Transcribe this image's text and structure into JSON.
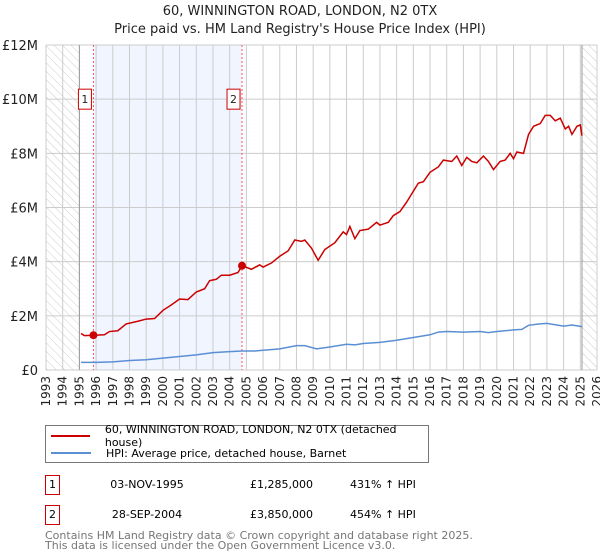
{
  "header": {
    "title": "60, WINNINGTON ROAD, LONDON, N2 0TX",
    "subtitle": "Price paid vs. HM Land Registry's House Price Index (HPI)"
  },
  "chart_data": {
    "type": "line",
    "title": "60, WINNINGTON ROAD, LONDON, N2 0TX",
    "subtitle": "Price paid vs. HM Land Registry's House Price Index (HPI)",
    "xlim": [
      1993,
      2026
    ],
    "ylim": [
      0,
      12
    ],
    "x_ticks": [
      "1993",
      "1994",
      "1995",
      "1996",
      "1997",
      "1998",
      "1999",
      "2000",
      "2001",
      "2002",
      "2003",
      "2004",
      "2005",
      "2006",
      "2007",
      "2008",
      "2009",
      "2010",
      "2011",
      "2012",
      "2013",
      "2014",
      "2015",
      "2016",
      "2017",
      "2018",
      "2019",
      "2020",
      "2021",
      "2022",
      "2023",
      "2024",
      "2025",
      "2026"
    ],
    "y_ticks": [
      {
        "v": 0,
        "label": "£0"
      },
      {
        "v": 2,
        "label": "£2M"
      },
      {
        "v": 4,
        "label": "£4M"
      },
      {
        "v": 6,
        "label": "£6M"
      },
      {
        "v": 8,
        "label": "£8M"
      },
      {
        "v": 10,
        "label": "£10M"
      },
      {
        "v": 12,
        "label": "£12M"
      }
    ],
    "grid": true,
    "data_range": [
      1995,
      2025.1
    ],
    "shaded_between_sales": [
      1995.84,
      2004.74
    ],
    "series": [
      {
        "name": "60, WINNINGTON ROAD, LONDON, N2 0TX (detached house)",
        "color": "#cc0000",
        "points": [
          [
            1995.1,
            1.35
          ],
          [
            1995.3,
            1.27
          ],
          [
            1995.84,
            1.285
          ],
          [
            1996.5,
            1.3
          ],
          [
            1996.8,
            1.42
          ],
          [
            1997.3,
            1.45
          ],
          [
            1997.8,
            1.7
          ],
          [
            1998.5,
            1.8
          ],
          [
            1999,
            1.88
          ],
          [
            1999.5,
            1.9
          ],
          [
            2000,
            2.2
          ],
          [
            2000.5,
            2.4
          ],
          [
            2001,
            2.62
          ],
          [
            2001.5,
            2.6
          ],
          [
            2002,
            2.88
          ],
          [
            2002.5,
            3.0
          ],
          [
            2002.8,
            3.3
          ],
          [
            2003.2,
            3.35
          ],
          [
            2003.5,
            3.5
          ],
          [
            2004,
            3.5
          ],
          [
            2004.5,
            3.6
          ],
          [
            2004.74,
            3.85
          ],
          [
            2005.3,
            3.72
          ],
          [
            2005.8,
            3.88
          ],
          [
            2006,
            3.8
          ],
          [
            2006.5,
            3.95
          ],
          [
            2007,
            4.2
          ],
          [
            2007.5,
            4.4
          ],
          [
            2007.9,
            4.8
          ],
          [
            2008.3,
            4.75
          ],
          [
            2008.5,
            4.8
          ],
          [
            2008.9,
            4.5
          ],
          [
            2009.3,
            4.05
          ],
          [
            2009.7,
            4.45
          ],
          [
            2010.3,
            4.7
          ],
          [
            2010.8,
            5.1
          ],
          [
            2011,
            5.0
          ],
          [
            2011.2,
            5.3
          ],
          [
            2011.5,
            4.85
          ],
          [
            2011.8,
            5.15
          ],
          [
            2012.3,
            5.2
          ],
          [
            2012.8,
            5.45
          ],
          [
            2013,
            5.35
          ],
          [
            2013.5,
            5.45
          ],
          [
            2013.8,
            5.7
          ],
          [
            2014.2,
            5.85
          ],
          [
            2014.6,
            6.2
          ],
          [
            2015,
            6.6
          ],
          [
            2015.3,
            6.9
          ],
          [
            2015.6,
            6.95
          ],
          [
            2016,
            7.3
          ],
          [
            2016.5,
            7.5
          ],
          [
            2016.8,
            7.75
          ],
          [
            2017.3,
            7.7
          ],
          [
            2017.6,
            7.9
          ],
          [
            2017.9,
            7.55
          ],
          [
            2018.2,
            7.85
          ],
          [
            2018.5,
            7.7
          ],
          [
            2018.8,
            7.65
          ],
          [
            2019.2,
            7.9
          ],
          [
            2019.5,
            7.7
          ],
          [
            2019.8,
            7.4
          ],
          [
            2020.2,
            7.7
          ],
          [
            2020.5,
            7.75
          ],
          [
            2020.8,
            8.0
          ],
          [
            2021,
            7.8
          ],
          [
            2021.2,
            8.05
          ],
          [
            2021.6,
            8.0
          ],
          [
            2021.9,
            8.7
          ],
          [
            2022.2,
            9.0
          ],
          [
            2022.6,
            9.1
          ],
          [
            2022.9,
            9.4
          ],
          [
            2023.2,
            9.4
          ],
          [
            2023.5,
            9.2
          ],
          [
            2023.8,
            9.3
          ],
          [
            2024.1,
            8.9
          ],
          [
            2024.3,
            9.0
          ],
          [
            2024.5,
            8.7
          ],
          [
            2024.8,
            9.0
          ],
          [
            2025.0,
            9.05
          ],
          [
            2025.1,
            8.65
          ]
        ]
      },
      {
        "name": "HPI: Average price, detached house, Barnet",
        "color": "#5b8fd4",
        "points": [
          [
            1995.1,
            0.28
          ],
          [
            1996,
            0.28
          ],
          [
            1997,
            0.3
          ],
          [
            1998,
            0.35
          ],
          [
            1999,
            0.38
          ],
          [
            2000,
            0.44
          ],
          [
            2001,
            0.5
          ],
          [
            2002,
            0.56
          ],
          [
            2003,
            0.64
          ],
          [
            2004,
            0.68
          ],
          [
            2004.74,
            0.7
          ],
          [
            2005.5,
            0.7
          ],
          [
            2006,
            0.73
          ],
          [
            2007,
            0.78
          ],
          [
            2008,
            0.9
          ],
          [
            2008.5,
            0.9
          ],
          [
            2009.2,
            0.78
          ],
          [
            2010,
            0.85
          ],
          [
            2011,
            0.95
          ],
          [
            2011.5,
            0.93
          ],
          [
            2012,
            0.98
          ],
          [
            2013,
            1.02
          ],
          [
            2014,
            1.1
          ],
          [
            2015,
            1.2
          ],
          [
            2016,
            1.3
          ],
          [
            2016.5,
            1.4
          ],
          [
            2017,
            1.42
          ],
          [
            2018,
            1.4
          ],
          [
            2019,
            1.42
          ],
          [
            2019.5,
            1.38
          ],
          [
            2020,
            1.42
          ],
          [
            2021,
            1.48
          ],
          [
            2021.5,
            1.5
          ],
          [
            2021.9,
            1.65
          ],
          [
            2022.5,
            1.7
          ],
          [
            2023,
            1.72
          ],
          [
            2023.5,
            1.67
          ],
          [
            2024,
            1.62
          ],
          [
            2024.5,
            1.66
          ],
          [
            2025.1,
            1.6
          ]
        ]
      }
    ],
    "sales": [
      {
        "label": "1",
        "x": 1995.84,
        "y": 1.285
      },
      {
        "label": "2",
        "x": 2004.74,
        "y": 3.85
      }
    ],
    "marker_label_value": 10
  },
  "legend": {
    "items": [
      {
        "label": "60, WINNINGTON ROAD, LONDON, N2 0TX (detached house)",
        "color": "#cc0000"
      },
      {
        "label": "HPI: Average price, detached house, Barnet",
        "color": "#5b8fd4"
      }
    ]
  },
  "transactions": [
    {
      "num": "1",
      "date": "03-NOV-1995",
      "price": "£1,285,000",
      "hpi": "431% ↑ HPI"
    },
    {
      "num": "2",
      "date": "28-SEP-2004",
      "price": "£3,850,000",
      "hpi": "454% ↑ HPI"
    }
  ],
  "footer": {
    "line1": "Contains HM Land Registry data © Crown copyright and database right 2025.",
    "line2": "This data is licensed under the Open Government Licence v3.0."
  }
}
